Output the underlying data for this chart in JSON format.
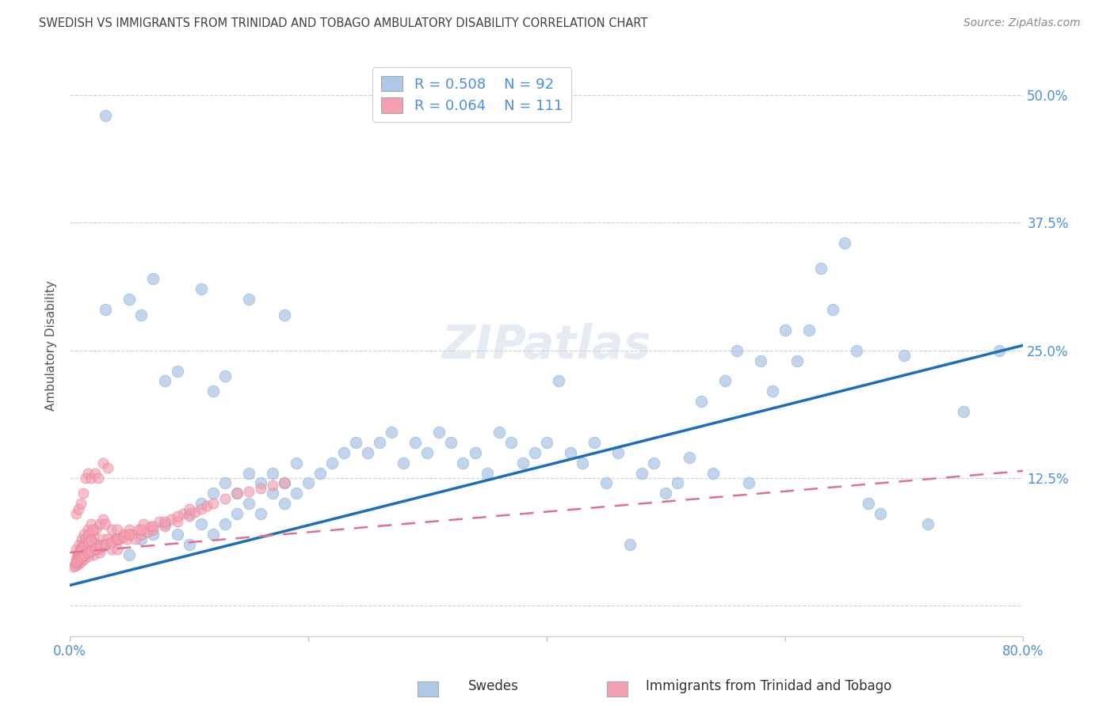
{
  "title": "SWEDISH VS IMMIGRANTS FROM TRINIDAD AND TOBAGO AMBULATORY DISABILITY CORRELATION CHART",
  "source": "Source: ZipAtlas.com",
  "ylabel": "Ambulatory Disability",
  "xlim": [
    0.0,
    0.8
  ],
  "ylim": [
    -0.03,
    0.54
  ],
  "yticks": [
    0.0,
    0.125,
    0.25,
    0.375,
    0.5
  ],
  "ytick_labels_right": [
    "",
    "12.5%",
    "25.0%",
    "37.5%",
    "50.0%"
  ],
  "xticks": [
    0.0,
    0.2,
    0.4,
    0.6,
    0.8
  ],
  "xtick_labels": [
    "0.0%",
    "",
    "",
    "",
    "80.0%"
  ],
  "grid_color": "#d0d0d0",
  "background_color": "#ffffff",
  "blue_color": "#aec8e8",
  "blue_edge_color": "#7aafd4",
  "blue_line_color": "#1a6fbd",
  "pink_color": "#f4a0b0",
  "pink_edge_color": "#e07090",
  "pink_line_color": "#e07090",
  "text_color": "#4a90d9",
  "title_color": "#404040",
  "legend_R1": "R = 0.508",
  "legend_N1": "N = 92",
  "legend_R2": "R = 0.064",
  "legend_N2": "N = 111",
  "swedes_label": "Swedes",
  "immigrants_label": "Immigrants from Trinidad and Tobago",
  "blue_line_x0": 0.0,
  "blue_line_y0": 0.02,
  "blue_line_x1": 0.8,
  "blue_line_y1": 0.255,
  "pink_line_x0": 0.0,
  "pink_line_y0": 0.052,
  "pink_line_x1": 0.8,
  "pink_line_y1": 0.132,
  "blue_scatter_x": [
    0.025,
    0.04,
    0.05,
    0.06,
    0.07,
    0.08,
    0.09,
    0.1,
    0.1,
    0.11,
    0.11,
    0.12,
    0.12,
    0.13,
    0.13,
    0.14,
    0.14,
    0.15,
    0.15,
    0.16,
    0.16,
    0.17,
    0.17,
    0.18,
    0.18,
    0.19,
    0.19,
    0.2,
    0.21,
    0.22,
    0.23,
    0.24,
    0.25,
    0.26,
    0.27,
    0.28,
    0.29,
    0.3,
    0.31,
    0.32,
    0.33,
    0.34,
    0.35,
    0.36,
    0.37,
    0.38,
    0.39,
    0.4,
    0.41,
    0.42,
    0.43,
    0.44,
    0.45,
    0.46,
    0.47,
    0.48,
    0.49,
    0.5,
    0.51,
    0.52,
    0.53,
    0.54,
    0.55,
    0.56,
    0.57,
    0.58,
    0.59,
    0.6,
    0.61,
    0.62,
    0.63,
    0.64,
    0.65,
    0.66,
    0.67,
    0.68,
    0.7,
    0.72,
    0.75,
    0.78,
    0.03,
    0.05,
    0.07,
    0.09,
    0.11,
    0.13,
    0.03,
    0.06,
    0.08,
    0.12,
    0.15,
    0.18
  ],
  "blue_scatter_y": [
    0.06,
    0.065,
    0.05,
    0.065,
    0.07,
    0.08,
    0.07,
    0.06,
    0.09,
    0.08,
    0.1,
    0.07,
    0.11,
    0.08,
    0.12,
    0.09,
    0.11,
    0.1,
    0.13,
    0.09,
    0.12,
    0.11,
    0.13,
    0.1,
    0.12,
    0.11,
    0.14,
    0.12,
    0.13,
    0.14,
    0.15,
    0.16,
    0.15,
    0.16,
    0.17,
    0.14,
    0.16,
    0.15,
    0.17,
    0.16,
    0.14,
    0.15,
    0.13,
    0.17,
    0.16,
    0.14,
    0.15,
    0.16,
    0.22,
    0.15,
    0.14,
    0.16,
    0.12,
    0.15,
    0.06,
    0.13,
    0.14,
    0.11,
    0.12,
    0.145,
    0.2,
    0.13,
    0.22,
    0.25,
    0.12,
    0.24,
    0.21,
    0.27,
    0.24,
    0.27,
    0.33,
    0.29,
    0.355,
    0.25,
    0.1,
    0.09,
    0.245,
    0.08,
    0.19,
    0.25,
    0.48,
    0.3,
    0.32,
    0.23,
    0.31,
    0.225,
    0.29,
    0.285,
    0.22,
    0.21,
    0.3,
    0.285
  ],
  "pink_scatter_x": [
    0.005,
    0.008,
    0.01,
    0.01,
    0.012,
    0.012,
    0.015,
    0.015,
    0.018,
    0.018,
    0.02,
    0.02,
    0.022,
    0.022,
    0.025,
    0.025,
    0.028,
    0.028,
    0.03,
    0.03,
    0.032,
    0.035,
    0.035,
    0.038,
    0.04,
    0.04,
    0.042,
    0.045,
    0.048,
    0.05,
    0.052,
    0.055,
    0.058,
    0.06,
    0.062,
    0.065,
    0.068,
    0.07,
    0.075,
    0.08,
    0.085,
    0.09,
    0.095,
    0.1,
    0.105,
    0.11,
    0.115,
    0.12,
    0.13,
    0.14,
    0.15,
    0.16,
    0.17,
    0.18,
    0.007,
    0.009,
    0.011,
    0.013,
    0.016,
    0.019,
    0.005,
    0.006,
    0.007,
    0.008,
    0.009,
    0.01,
    0.012,
    0.014,
    0.016,
    0.018,
    0.02,
    0.022,
    0.025,
    0.028,
    0.006,
    0.008,
    0.01,
    0.012,
    0.015,
    0.003,
    0.004,
    0.005,
    0.006,
    0.008,
    0.01,
    0.012,
    0.015,
    0.018,
    0.022,
    0.026,
    0.03,
    0.035,
    0.04,
    0.045,
    0.05,
    0.06,
    0.07,
    0.08,
    0.09,
    0.1,
    0.005,
    0.007,
    0.009,
    0.011,
    0.013,
    0.015,
    0.018,
    0.021,
    0.024,
    0.028,
    0.032
  ],
  "pink_scatter_y": [
    0.055,
    0.06,
    0.05,
    0.065,
    0.055,
    0.07,
    0.06,
    0.075,
    0.065,
    0.08,
    0.055,
    0.07,
    0.06,
    0.075,
    0.055,
    0.08,
    0.065,
    0.085,
    0.06,
    0.08,
    0.065,
    0.055,
    0.075,
    0.065,
    0.055,
    0.075,
    0.065,
    0.07,
    0.065,
    0.075,
    0.07,
    0.065,
    0.075,
    0.07,
    0.08,
    0.072,
    0.078,
    0.075,
    0.082,
    0.078,
    0.085,
    0.082,
    0.09,
    0.088,
    0.092,
    0.095,
    0.098,
    0.1,
    0.105,
    0.11,
    0.112,
    0.115,
    0.118,
    0.12,
    0.05,
    0.055,
    0.06,
    0.065,
    0.07,
    0.075,
    0.045,
    0.048,
    0.05,
    0.052,
    0.054,
    0.056,
    0.058,
    0.06,
    0.062,
    0.064,
    0.05,
    0.055,
    0.052,
    0.058,
    0.04,
    0.042,
    0.044,
    0.046,
    0.048,
    0.038,
    0.04,
    0.042,
    0.044,
    0.046,
    0.048,
    0.05,
    0.052,
    0.054,
    0.056,
    0.058,
    0.06,
    0.062,
    0.065,
    0.068,
    0.07,
    0.075,
    0.078,
    0.082,
    0.088,
    0.095,
    0.09,
    0.095,
    0.1,
    0.11,
    0.125,
    0.13,
    0.125,
    0.13,
    0.125,
    0.14,
    0.135
  ]
}
